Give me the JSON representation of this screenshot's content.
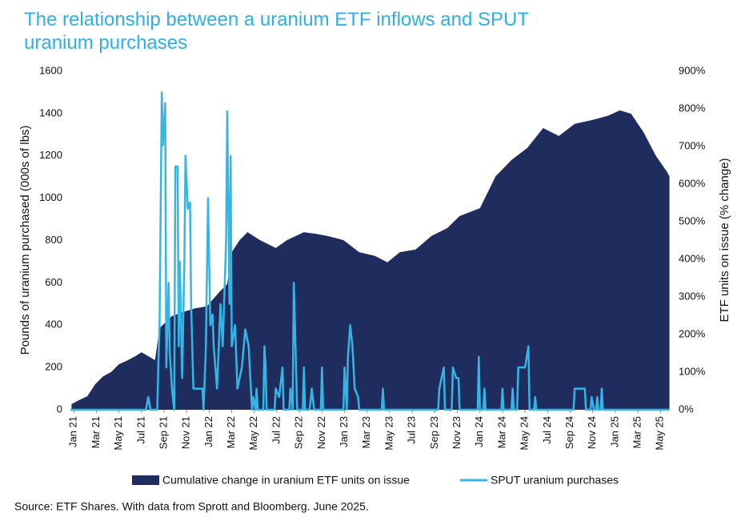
{
  "chart_data": {
    "type": "area-line",
    "title": "The relationship between a uranium ETF inflows and SPUT uranium purchases",
    "ylabel": "Pounds of uranium purchased (000s of lbs)",
    "y2label": "ETF units on issue (% change)",
    "source": "Source: ETF Shares. With data from Sprott and Bloomberg. June 2025.",
    "xlim": [
      -0.3,
      52.9
    ],
    "xticks": [
      {
        "value": 0,
        "label": "Jan 21"
      },
      {
        "value": 2,
        "label": "Mar 21"
      },
      {
        "value": 4,
        "label": "May 21"
      },
      {
        "value": 6,
        "label": "Jul 21"
      },
      {
        "value": 8,
        "label": "Sep 21"
      },
      {
        "value": 10,
        "label": "Nov 21"
      },
      {
        "value": 12,
        "label": "Jan 22"
      },
      {
        "value": 14,
        "label": "Mar 22"
      },
      {
        "value": 16,
        "label": "May 22"
      },
      {
        "value": 18,
        "label": "Jul 22"
      },
      {
        "value": 20,
        "label": "Sep 22"
      },
      {
        "value": 22,
        "label": "Nov 22"
      },
      {
        "value": 24,
        "label": "Jan 23"
      },
      {
        "value": 26,
        "label": "Mar 23"
      },
      {
        "value": 28,
        "label": "May 23"
      },
      {
        "value": 30,
        "label": "Jul 23"
      },
      {
        "value": 32,
        "label": "Sep 23"
      },
      {
        "value": 34,
        "label": "Nov 23"
      },
      {
        "value": 36,
        "label": "Jan 24"
      },
      {
        "value": 38,
        "label": "Mar 24"
      },
      {
        "value": 40,
        "label": "May 24"
      },
      {
        "value": 42,
        "label": "Jul 24"
      },
      {
        "value": 44,
        "label": "Sep 24"
      },
      {
        "value": 46,
        "label": "Nov 24"
      },
      {
        "value": 48,
        "label": "Jan 25"
      },
      {
        "value": 50,
        "label": "Mar 25"
      },
      {
        "value": 52,
        "label": "May 25"
      }
    ],
    "ylim": [
      0,
      1600
    ],
    "yticks": [
      0,
      200,
      400,
      600,
      800,
      1000,
      1200,
      1400,
      1600
    ],
    "y2lim": [
      0,
      900
    ],
    "y2ticks": [
      {
        "value": 0,
        "label": "0%"
      },
      {
        "value": 100,
        "label": "100%"
      },
      {
        "value": 200,
        "label": "200%"
      },
      {
        "value": 300,
        "label": "300%"
      },
      {
        "value": 400,
        "label": "400%"
      },
      {
        "value": 500,
        "label": "500%"
      },
      {
        "value": 600,
        "label": "600%"
      },
      {
        "value": 700,
        "label": "700%"
      },
      {
        "value": 800,
        "label": "800%"
      },
      {
        "value": 900,
        "label": "900%"
      }
    ],
    "series": [
      {
        "name": "Cumulative change in uranium ETF units on issue",
        "kind": "area",
        "axis": "y2",
        "color": "#1f2d5e",
        "x": [
          -0.2,
          0.5,
          1.2,
          1.9,
          2.6,
          3.3,
          4.0,
          4.8,
          5.5,
          6.0,
          7.2,
          7.6,
          8.7,
          9.7,
          10.8,
          11.8,
          12.9,
          13.6,
          14.0,
          14.7,
          15.4,
          16.5,
          17.9,
          18.9,
          20.4,
          21.4,
          22.5,
          23.9,
          25.3,
          26.7,
          27.8,
          28.9,
          30.3,
          31.7,
          33.1,
          34.2,
          36.0,
          37.4,
          38.8,
          40.2,
          41.6,
          43.0,
          44.4,
          45.9,
          47.3,
          48.4,
          49.4,
          50.5,
          51.6,
          52.6,
          52.8
        ],
        "values": [
          15,
          26,
          36,
          68,
          89,
          100,
          121,
          132,
          143,
          153,
          132,
          217,
          249,
          260,
          270,
          275,
          313,
          334,
          419,
          451,
          472,
          451,
          430,
          451,
          472,
          468,
          462,
          451,
          419,
          409,
          392,
          419,
          426,
          462,
          483,
          515,
          536,
          621,
          664,
          696,
          749,
          728,
          760,
          770,
          781,
          796,
          787,
          738,
          675,
          632,
          620
        ]
      },
      {
        "name": "SPUT uranium purchases",
        "kind": "line",
        "color": "#35b5e5",
        "x": [
          -0.3,
          6.4,
          6.6,
          6.8,
          7.4,
          7.5,
          7.6,
          7.8,
          7.9,
          8.1,
          8.2,
          8.4,
          8.5,
          8.7,
          8.9,
          9.0,
          9.2,
          9.3,
          9.4,
          9.6,
          9.8,
          9.9,
          10.1,
          10.3,
          10.4,
          10.6,
          11.4,
          11.5,
          11.7,
          11.9,
          12.1,
          12.3,
          12.4,
          12.7,
          13.0,
          13.2,
          13.5,
          13.6,
          13.8,
          13.9,
          14.0,
          14.3,
          14.5,
          14.9,
          15.2,
          15.5,
          15.8,
          15.9,
          16.1,
          16.2,
          16.3,
          16.8,
          16.9,
          17.0,
          17.1,
          17.8,
          17.9,
          18.2,
          18.5,
          18.6,
          19.1,
          19.2,
          19.4,
          19.5,
          19.7,
          19.8,
          20.3,
          20.4,
          20.5,
          20.9,
          21.1,
          21.3,
          21.9,
          22.0,
          22.1,
          23.9,
          24.0,
          24.2,
          24.3,
          24.5,
          24.7,
          24.9,
          25.2,
          25.3,
          27.3,
          27.4,
          27.5,
          32.3,
          32.4,
          32.8,
          32.9,
          33.5,
          33.6,
          33.9,
          34.1,
          34.2,
          35.8,
          35.9,
          36.0,
          36.3,
          36.4,
          36.5,
          37.9,
          38.0,
          38.1,
          38.8,
          38.9,
          39.0,
          39.3,
          39.4,
          39.7,
          40.0,
          40.3,
          40.4,
          40.8,
          40.9,
          41.0,
          44.3,
          44.4,
          45.3,
          45.4,
          45.8,
          45.9,
          46.1,
          46.3,
          46.4,
          46.5,
          46.7,
          46.8,
          46.9,
          52.8
        ],
        "values": [
          0,
          0,
          60,
          0,
          0,
          230,
          400,
          1500,
          1250,
          1450,
          200,
          600,
          280,
          100,
          0,
          1150,
          1150,
          300,
          700,
          150,
          700,
          1200,
          950,
          980,
          500,
          100,
          100,
          0,
          280,
          1000,
          400,
          450,
          300,
          100,
          500,
          300,
          800,
          1410,
          500,
          1200,
          300,
          400,
          100,
          200,
          380,
          300,
          0,
          60,
          0,
          100,
          0,
          0,
          300,
          200,
          0,
          0,
          100,
          60,
          200,
          0,
          0,
          100,
          0,
          600,
          200,
          0,
          0,
          200,
          0,
          0,
          100,
          0,
          0,
          200,
          0,
          0,
          200,
          0,
          250,
          400,
          300,
          100,
          60,
          0,
          0,
          100,
          0,
          0,
          100,
          200,
          0,
          0,
          200,
          150,
          150,
          0,
          0,
          250,
          0,
          0,
          100,
          0,
          0,
          100,
          0,
          0,
          100,
          0,
          0,
          200,
          200,
          200,
          300,
          0,
          0,
          60,
          0,
          0,
          100,
          100,
          0,
          0,
          60,
          0,
          0,
          60,
          0,
          0,
          100,
          0,
          0
        ]
      }
    ]
  }
}
